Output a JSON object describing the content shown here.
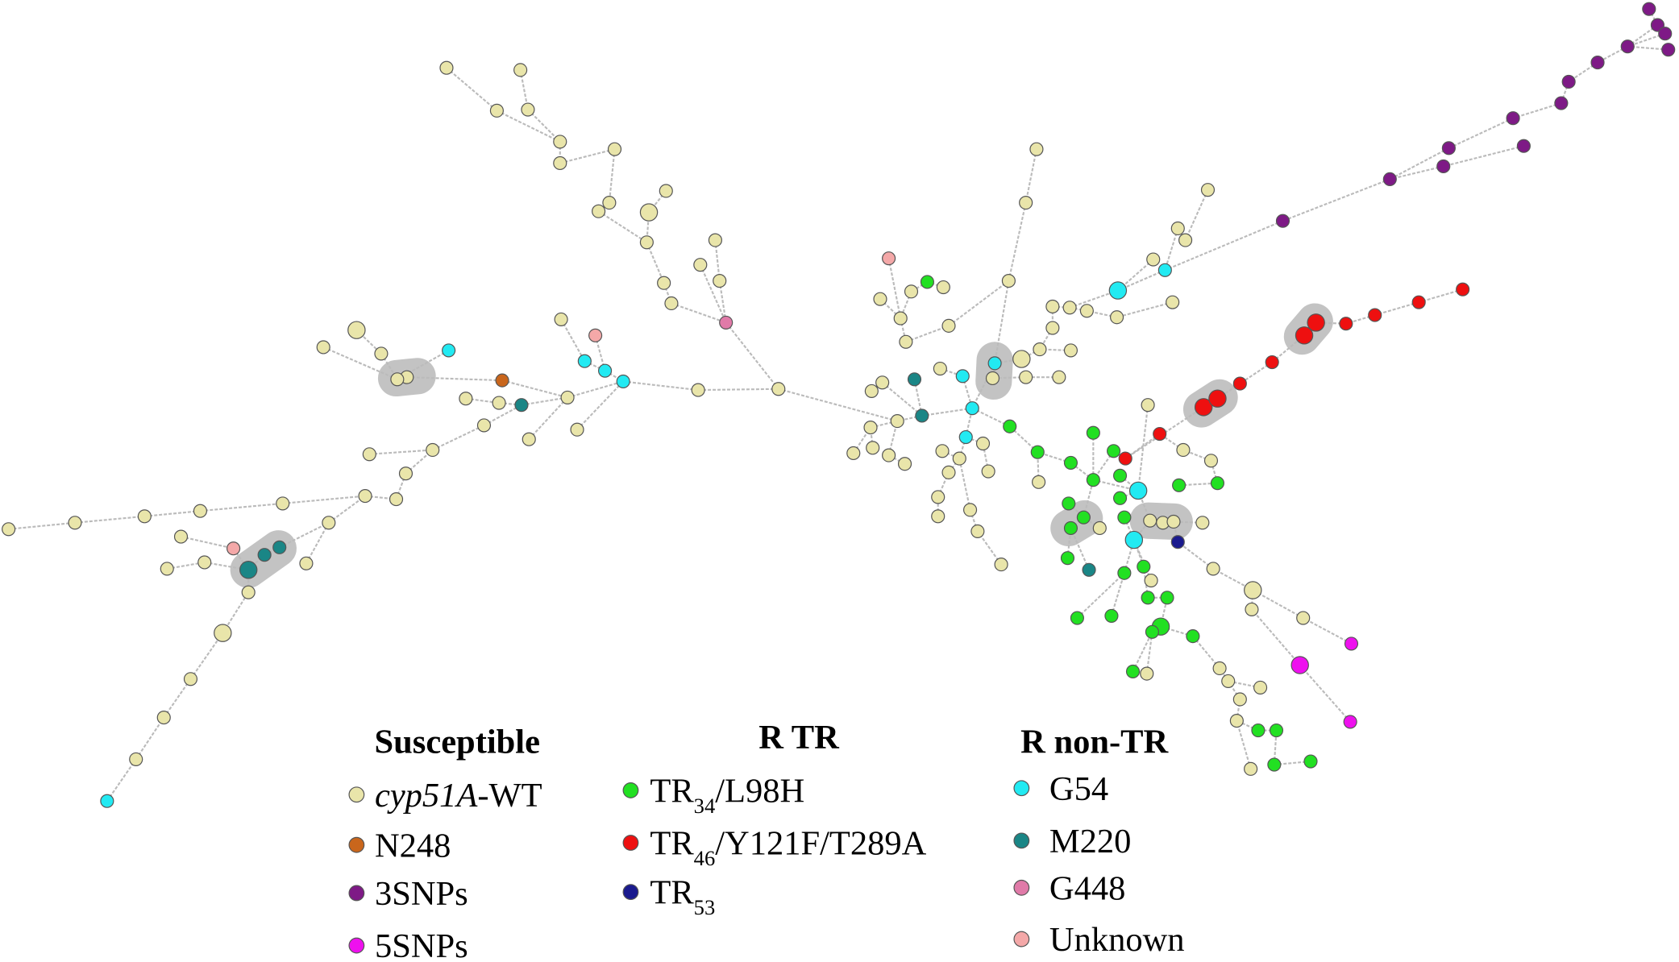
{
  "legend": {
    "groups": [
      {
        "title": "Susceptible",
        "items": [
          {
            "color": "#e9e5aa",
            "parts": [
              {
                "text": "cyp51A",
                "italic": true
              },
              {
                "text": "-WT"
              }
            ]
          },
          {
            "color": "#c9661c",
            "parts": [
              {
                "text": "N248"
              }
            ]
          },
          {
            "color": "#7e1a86",
            "parts": [
              {
                "text": "3SNPs"
              }
            ]
          },
          {
            "color": "#ee10ee",
            "parts": [
              {
                "text": "5SNPs"
              }
            ]
          }
        ]
      },
      {
        "title": "R TR",
        "items": [
          {
            "color": "#22e022",
            "parts": [
              {
                "text": "TR"
              },
              {
                "text": "34",
                "sub": true
              },
              {
                "text": "/L98H"
              }
            ]
          },
          {
            "color": "#ee1010",
            "parts": [
              {
                "text": "TR"
              },
              {
                "text": "46",
                "sub": true
              },
              {
                "text": "/Y121F/T289A"
              }
            ]
          },
          {
            "color": "#1a1a8e",
            "parts": [
              {
                "text": "TR"
              },
              {
                "text": "53",
                "sub": true
              }
            ]
          }
        ]
      },
      {
        "title": "R non-TR",
        "items": [
          {
            "color": "#22eaf2",
            "parts": [
              {
                "text": "G54"
              }
            ]
          },
          {
            "color": "#1a8686",
            "parts": [
              {
                "text": "M220"
              }
            ]
          },
          {
            "color": "#e07aa8",
            "parts": [
              {
                "text": "G448"
              }
            ]
          },
          {
            "color": "#f4a8a8",
            "parts": [
              {
                "text": "Unknown"
              }
            ]
          }
        ]
      }
    ]
  }
}
